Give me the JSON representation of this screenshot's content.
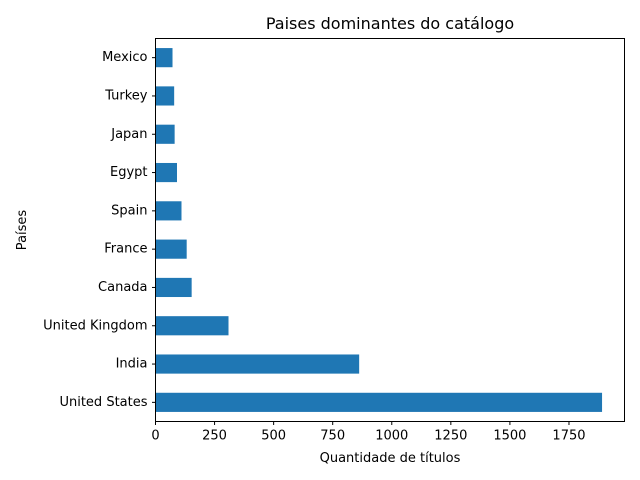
{
  "chart_data": {
    "type": "bar",
    "orientation": "horizontal",
    "title": "Paises dominantes do catálogo",
    "xlabel": "Quantidade de títulos",
    "ylabel": "Países",
    "categories": [
      "United States",
      "India",
      "United Kingdom",
      "Canada",
      "France",
      "Spain",
      "Egypt",
      "Japan",
      "Turkey",
      "Mexico"
    ],
    "values": [
      1890,
      862,
      309,
      153,
      132,
      110,
      91,
      81,
      79,
      72
    ],
    "xlim": [
      0,
      1985
    ],
    "xticks": [
      0,
      250,
      500,
      750,
      1000,
      1250,
      1500,
      1750
    ],
    "xtick_labels": [
      "0",
      "250",
      "500",
      "750",
      "1000",
      "1250",
      "1500",
      "1750"
    ],
    "bar_color": "#1f77b4",
    "grid": false
  }
}
